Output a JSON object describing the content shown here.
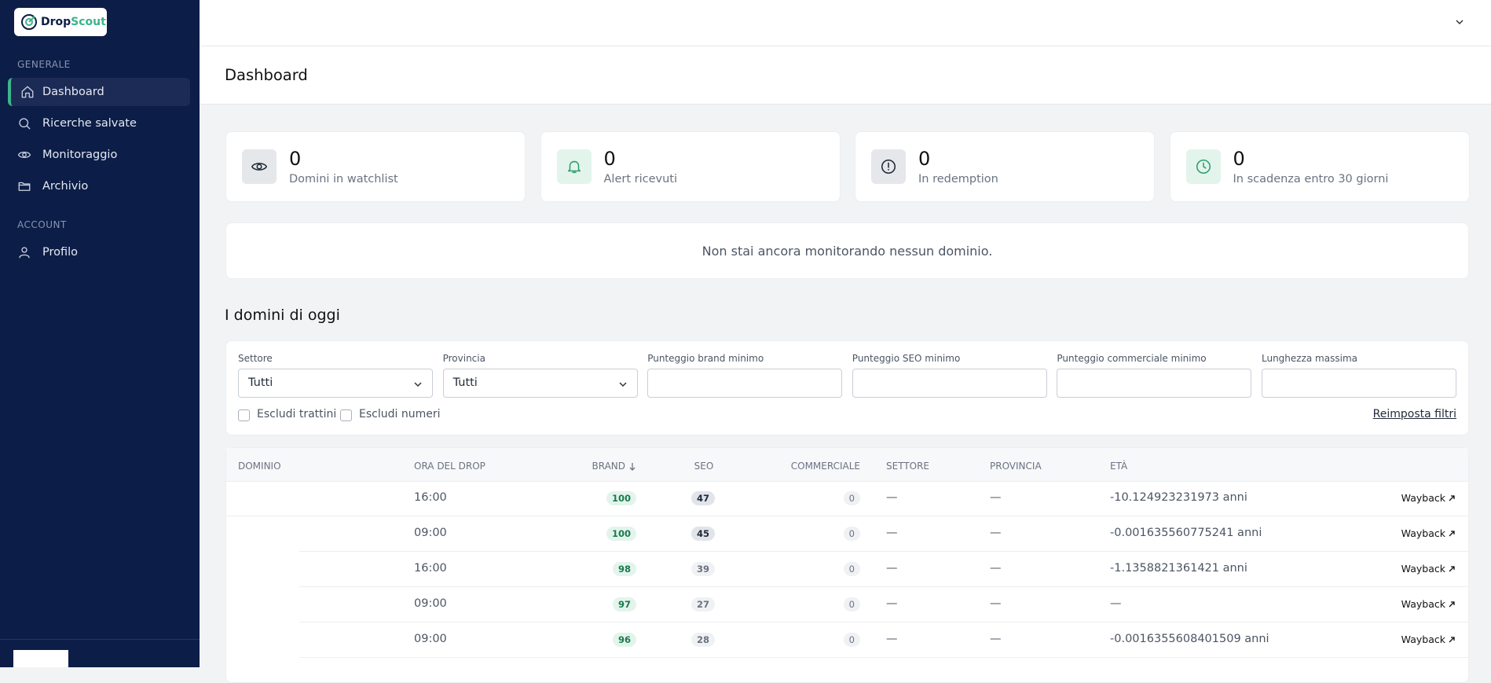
{
  "sidebar": {
    "logo": {
      "part1": "Drop",
      "part2": "Scout"
    },
    "sections": [
      {
        "title": "GENERALE",
        "items": [
          "Dashboard",
          "Ricerche salvate",
          "Monitoraggio",
          "Archivio"
        ]
      },
      {
        "title": "ACCOUNT",
        "items": [
          "Profilo"
        ]
      }
    ]
  },
  "header": {
    "title": "Dashboard"
  },
  "stats": [
    {
      "value": 0,
      "label": "Domini in watchlist"
    },
    {
      "value": 0,
      "label": "Alert ricevuti"
    },
    {
      "value": 0,
      "label": "In redemption"
    },
    {
      "value": 0,
      "label": "In scadenza entro 30 giorni"
    }
  ],
  "empty_message": "Non stai ancora monitorando nessun dominio.",
  "section_title": "I domini di oggi",
  "filters": {
    "fields": [
      {
        "label": "Settore",
        "value": "Tutti"
      },
      {
        "label": "Provincia",
        "value": "Tutti"
      },
      {
        "label": "Punteggio brand minimo"
      },
      {
        "label": "Punteggio SEO minimo"
      },
      {
        "label": "Punteggio commerciale minimo"
      },
      {
        "label": "Lunghezza massima"
      }
    ],
    "checkboxes": [
      "Escludi trattini",
      "Escludi numeri"
    ],
    "reset": "Reimposta filtri"
  },
  "table": {
    "headers": [
      "DOMINIO",
      "ORA DEL DROP",
      "BRAND",
      "SEO",
      "COMMERCIALE",
      "SETTORE",
      "PROVINCIA",
      "ETÀ"
    ],
    "rows": [
      {
        "time": "16:00",
        "brand": 100,
        "seo": 47,
        "commerciale": 0,
        "settore": "—",
        "provincia": "—",
        "eta": "-10.124923231973 anni",
        "link": "Wayback"
      },
      {
        "time": "09:00",
        "brand": 100,
        "seo": 45,
        "commerciale": 0,
        "settore": "—",
        "provincia": "—",
        "eta": "-0.001635560775241 anni",
        "link": "Wayback"
      },
      {
        "time": "16:00",
        "brand": 98,
        "seo": 39,
        "commerciale": 0,
        "settore": "—",
        "provincia": "—",
        "eta": "-1.1358821361421 anni",
        "link": "Wayback"
      },
      {
        "time": "09:00",
        "brand": 97,
        "seo": 27,
        "commerciale": 0,
        "settore": "—",
        "provincia": "—",
        "eta": "—",
        "link": "Wayback"
      },
      {
        "time": "09:00",
        "brand": 96,
        "seo": 28,
        "commerciale": 0,
        "settore": "—",
        "provincia": "—",
        "eta": "-0.0016355608401509 anni",
        "link": "Wayback"
      }
    ]
  }
}
